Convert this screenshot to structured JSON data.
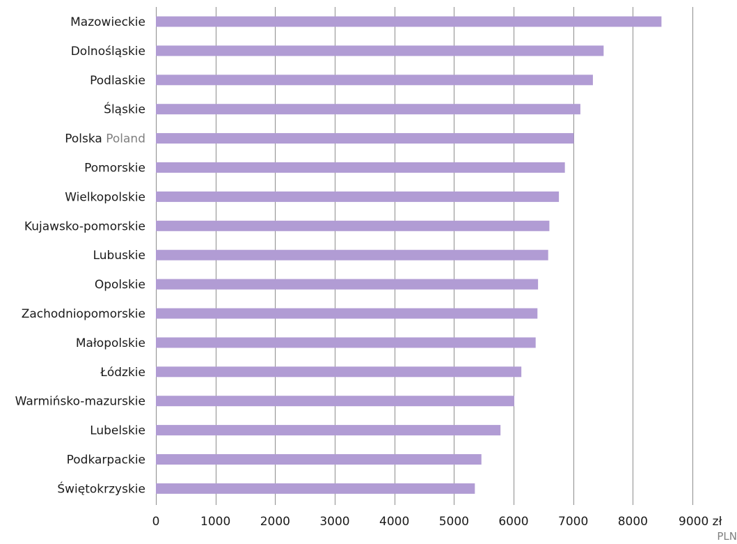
{
  "chart_data": {
    "type": "bar",
    "orientation": "horizontal",
    "categories": [
      {
        "label": "Mazowieckie",
        "alt": ""
      },
      {
        "label": "Dolnośląskie",
        "alt": ""
      },
      {
        "label": "Podlaskie",
        "alt": ""
      },
      {
        "label": "Śląskie",
        "alt": ""
      },
      {
        "label": "Polska",
        "alt": "Poland"
      },
      {
        "label": "Pomorskie",
        "alt": ""
      },
      {
        "label": "Wielkopolskie",
        "alt": ""
      },
      {
        "label": "Kujawsko-pomorskie",
        "alt": ""
      },
      {
        "label": "Lubuskie",
        "alt": ""
      },
      {
        "label": "Opolskie",
        "alt": ""
      },
      {
        "label": "Zachodniopomorskie",
        "alt": ""
      },
      {
        "label": "Małopolskie",
        "alt": ""
      },
      {
        "label": "Łódzkie",
        "alt": ""
      },
      {
        "label": "Warmińsko-mazurskie",
        "alt": ""
      },
      {
        "label": "Lubelskie",
        "alt": ""
      },
      {
        "label": "Podkarpackie",
        "alt": ""
      },
      {
        "label": "Świętokrzyskie",
        "alt": ""
      }
    ],
    "values": [
      8480,
      7510,
      7330,
      7120,
      7010,
      6860,
      6760,
      6600,
      6580,
      6410,
      6400,
      6370,
      6130,
      6010,
      5780,
      5460,
      5350
    ],
    "xlim": [
      0,
      9000
    ],
    "ticks": [
      "0",
      "1000",
      "2000",
      "3000",
      "4000",
      "5000",
      "6000",
      "7000",
      "8000",
      "9000"
    ],
    "unit": "zł",
    "unit_sub": "PLN",
    "bar_color": "#b19cd4",
    "grid": true
  }
}
